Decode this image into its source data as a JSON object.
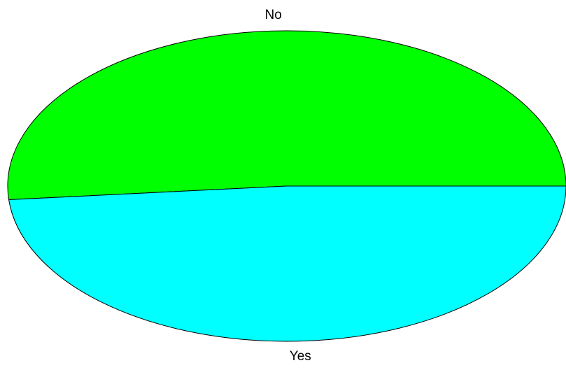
{
  "chart_data": {
    "type": "pie",
    "categories": [
      "No",
      "Yes"
    ],
    "values": [
      51.4,
      48.6
    ],
    "colors": [
      "#00ff00",
      "#00ffff"
    ]
  }
}
